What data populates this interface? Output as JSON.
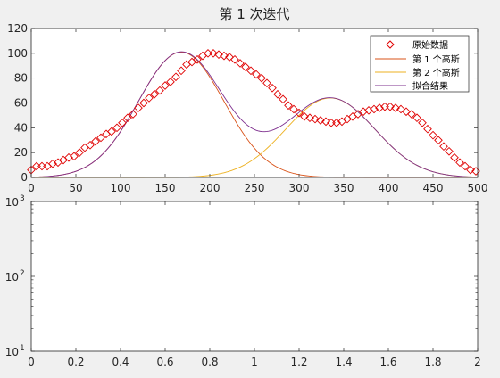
{
  "figure": {
    "title": "第 1 次迭代"
  },
  "chart_data": [
    {
      "type": "scatter+line",
      "title": "第 1 次迭代",
      "xlim": [
        0,
        500
      ],
      "ylim": [
        0,
        120
      ],
      "xticks": [
        "0",
        "50",
        "100",
        "150",
        "200",
        "250",
        "300",
        "350",
        "400",
        "450",
        "500"
      ],
      "yticks": [
        "0",
        "20",
        "40",
        "60",
        "80",
        "100",
        "120"
      ],
      "legend_position": "top-right",
      "grid": false,
      "colors": {
        "data": "#e00000",
        "gauss1": "#d95319",
        "gauss2": "#edb120",
        "fit": "#7e2f8e"
      },
      "data_points": {
        "name": "原始数据",
        "marker": "diamond",
        "x": [
          0,
          6,
          12,
          18,
          24,
          30,
          36,
          42,
          48,
          54,
          60,
          66,
          72,
          78,
          84,
          90,
          96,
          102,
          108,
          114,
          120,
          126,
          132,
          138,
          144,
          150,
          156,
          162,
          168,
          174,
          180,
          186,
          192,
          198,
          204,
          210,
          216,
          222,
          228,
          234,
          240,
          246,
          252,
          258,
          264,
          270,
          276,
          282,
          288,
          294,
          300,
          306,
          312,
          318,
          324,
          330,
          336,
          342,
          348,
          354,
          360,
          366,
          372,
          378,
          384,
          390,
          396,
          402,
          408,
          414,
          420,
          426,
          432,
          438,
          444,
          450,
          456,
          462,
          468,
          474,
          480,
          486,
          492,
          498
        ],
        "y": [
          6,
          9,
          9,
          9,
          11,
          12,
          14,
          16,
          17,
          20,
          24,
          26,
          29,
          32,
          35,
          37,
          40,
          44,
          48,
          51,
          56,
          60,
          64,
          67,
          70,
          74,
          77,
          81,
          86,
          91,
          93,
          95,
          98,
          100,
          100,
          99,
          98,
          97,
          95,
          92,
          89,
          86,
          83,
          80,
          76,
          72,
          67,
          63,
          58,
          55,
          52,
          49,
          48,
          47,
          46,
          45,
          44,
          44,
          45,
          47,
          49,
          51,
          53,
          54,
          55,
          56,
          57,
          57,
          56,
          55,
          53,
          51,
          48,
          44,
          39,
          34,
          30,
          25,
          21,
          16,
          12,
          9,
          6,
          5
        ]
      },
      "series": [
        {
          "name": "第 1 个高斯",
          "mu": 168,
          "sigma": 48,
          "amplitude": 101
        },
        {
          "name": "第 2 个高斯",
          "mu": 335,
          "sigma": 50,
          "amplitude": 64
        },
        {
          "name": "拟合结果"
        }
      ]
    },
    {
      "type": "line",
      "scale_y": "log",
      "xlim": [
        0,
        2
      ],
      "ylim": [
        10,
        1000
      ],
      "xticks": [
        "0",
        "0.2",
        "0.4",
        "0.6",
        "0.8",
        "1",
        "1.2",
        "1.4",
        "1.6",
        "1.8",
        "2"
      ],
      "yticks": [
        {
          "base": "10",
          "exp": "1"
        },
        {
          "base": "10",
          "exp": "2"
        },
        {
          "base": "10",
          "exp": "3"
        }
      ],
      "series": []
    }
  ]
}
